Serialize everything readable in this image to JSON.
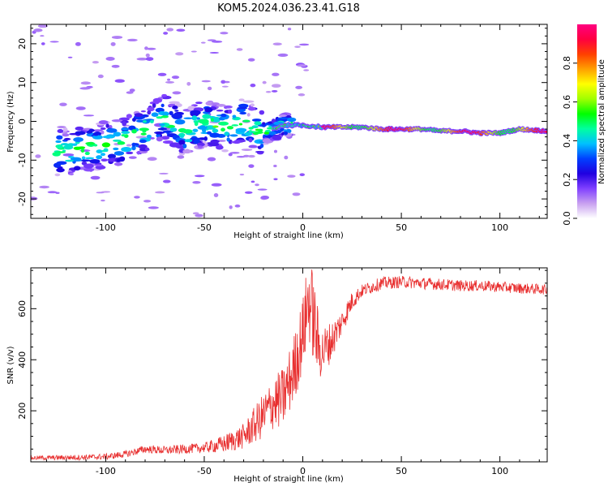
{
  "title": "KOM5.2024.036.23.41.G18",
  "chart_data": [
    {
      "type": "heatmap",
      "name": "spectrogram",
      "xlabel": "Height of straight line (km)",
      "ylabel": "Frequency (Hz)",
      "xlim": [
        -138,
        124
      ],
      "ylim": [
        -25,
        25
      ],
      "xticks": [
        -100,
        -50,
        0,
        50,
        100
      ],
      "yticks": [
        -20,
        -10,
        0,
        10,
        20
      ],
      "colorbar": {
        "label": "Normalized spectral amplitude",
        "ticks": [
          0.0,
          0.2,
          0.4,
          0.6,
          0.8
        ],
        "range": [
          0,
          1
        ],
        "colormap": [
          "#ffffff",
          "#c8a0f0",
          "#8040ff",
          "#2000e0",
          "#0040ff",
          "#00c0ff",
          "#00ffa0",
          "#00ff00",
          "#a0ff00",
          "#ffff00",
          "#ffa000",
          "#ff4000",
          "#ff0040",
          "#ff0080"
        ]
      },
      "ridge": {
        "x": [
          -120,
          -100,
          -90,
          -80,
          -70,
          -60,
          -50,
          -40,
          -30,
          -20,
          -10,
          0,
          10,
          20,
          30,
          40,
          50,
          60,
          70,
          80,
          90,
          100,
          110,
          124
        ],
        "y": [
          -8,
          -6,
          -5,
          -2,
          1,
          -3,
          0,
          -2,
          0,
          -3,
          -1,
          -1,
          -1.5,
          -1.5,
          -1.5,
          -2,
          -2,
          -2,
          -2.5,
          -2.5,
          -3,
          -3,
          -2,
          -2.5
        ]
      }
    },
    {
      "type": "line",
      "name": "snr",
      "xlabel": "Height of straight line (km)",
      "ylabel": "SNR (v/v)",
      "xlim": [
        -138,
        124
      ],
      "ylim": [
        0,
        760
      ],
      "xticks": [
        -100,
        -50,
        0,
        50,
        100
      ],
      "yticks": [
        200,
        400,
        600
      ],
      "color": "#e83030",
      "envelope": {
        "x": [
          -138,
          -110,
          -100,
          -90,
          -80,
          -70,
          -60,
          -50,
          -40,
          -30,
          -25,
          -20,
          -15,
          -10,
          -5,
          0,
          3,
          5,
          8,
          10,
          15,
          20,
          25,
          30,
          40,
          50,
          60,
          70,
          80,
          90,
          100,
          110,
          124
        ],
        "y": [
          15,
          18,
          20,
          30,
          50,
          45,
          50,
          55,
          70,
          100,
          140,
          180,
          230,
          250,
          350,
          500,
          640,
          580,
          450,
          430,
          480,
          550,
          630,
          670,
          700,
          705,
          700,
          695,
          690,
          690,
          685,
          680,
          675
        ]
      },
      "noise": {
        "x": [
          -138,
          -100,
          -50,
          -30,
          -20,
          -10,
          0,
          5,
          10,
          20,
          30,
          124
        ],
        "amplitude": [
          8,
          12,
          20,
          50,
          90,
          120,
          150,
          180,
          100,
          50,
          25,
          20
        ]
      }
    }
  ]
}
